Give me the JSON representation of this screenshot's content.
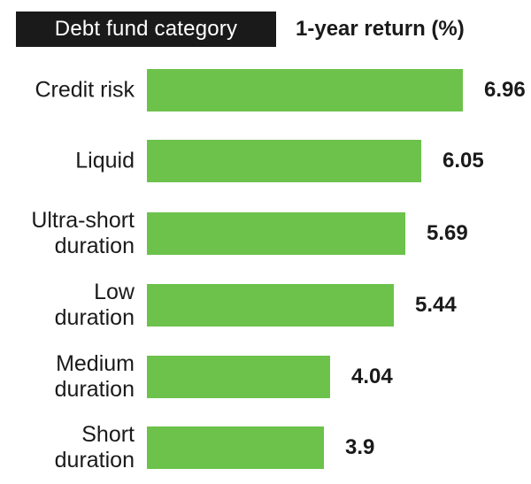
{
  "header": {
    "category_title": "Debt fund category",
    "value_title": "1-year return (%)"
  },
  "colors": {
    "bar": "#6cc24a",
    "header_bg": "#1a1a1a",
    "text": "#1a1a1a"
  },
  "chart_data": {
    "type": "bar",
    "orientation": "horizontal",
    "categories": [
      [
        "Credit risk"
      ],
      [
        "Liquid"
      ],
      [
        "Ultra-short",
        "duration"
      ],
      [
        "Low",
        "duration"
      ],
      [
        "Medium",
        "duration"
      ],
      [
        "Short",
        "duration"
      ]
    ],
    "values": [
      6.96,
      6.05,
      5.69,
      5.44,
      4.04,
      3.9
    ],
    "value_labels": [
      "6.96",
      "6.05",
      "5.69",
      "5.44",
      "4.04",
      "3.9"
    ],
    "xlim": [
      0,
      6.96
    ],
    "grid": false,
    "legend": "none"
  }
}
